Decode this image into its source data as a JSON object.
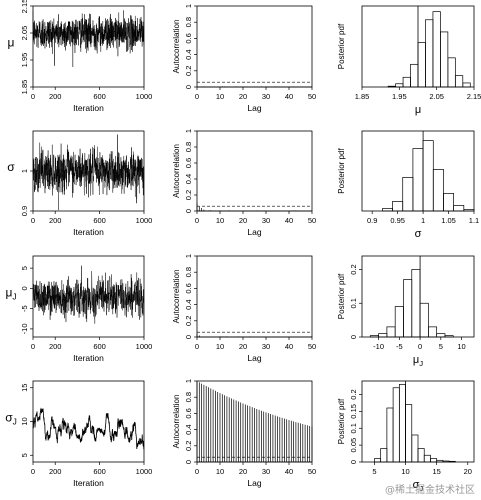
{
  "watermark": "@稀土掘金技术社区",
  "chart_data": [
    {
      "type": "line",
      "row": "mu",
      "trace": {
        "ylabel": "μ",
        "xlabel": "Iteration",
        "xlim": [
          0,
          1000
        ],
        "xticks": [
          0,
          200,
          600,
          1000
        ],
        "ylim": [
          1.85,
          2.15
        ],
        "yticks": [
          1.85,
          1.95,
          2.05,
          2.15
        ],
        "series": {
          "kind": "noise",
          "mean": 2.05,
          "sd": 0.03,
          "ar": 0.0,
          "n": 1000
        }
      },
      "acf": {
        "ylabel": "Autocorrelation",
        "xlabel": "Lag",
        "xlim": [
          0,
          50
        ],
        "xticks": [
          0,
          10,
          20,
          30,
          40,
          50
        ],
        "ylim": [
          0,
          1.0
        ],
        "yticks": [
          0.0,
          0.2,
          0.4,
          0.6,
          0.8,
          1.0
        ],
        "decay": 0.0,
        "start": 0.0,
        "ci": 0.06
      },
      "posterior": {
        "ylabel": "Posterior pdf",
        "xlabel": "μ",
        "xlim": [
          1.85,
          2.15
        ],
        "xticks": [
          1.85,
          1.95,
          2.05,
          2.15
        ],
        "ylim": [
          0,
          1
        ],
        "yticks": [],
        "ref_line": 2.0,
        "bins": [
          1.92,
          1.94,
          1.96,
          1.98,
          2.0,
          2.02,
          2.04,
          2.06,
          2.08,
          2.1,
          2.12,
          2.14
        ],
        "heights": [
          0.01,
          0.04,
          0.12,
          0.28,
          0.55,
          0.83,
          0.93,
          0.68,
          0.36,
          0.14,
          0.05
        ]
      }
    },
    {
      "type": "line",
      "row": "sigma",
      "trace": {
        "ylabel": "σ",
        "xlabel": "Iteration",
        "xlim": [
          0,
          1000
        ],
        "xticks": [
          0,
          200,
          600,
          1000
        ],
        "ylim": [
          0.9,
          1.1
        ],
        "yticks": [
          0.9,
          1.0
        ],
        "series": {
          "kind": "noise",
          "mean": 1.0,
          "sd": 0.025,
          "ar": 0.2,
          "n": 1000
        }
      },
      "acf": {
        "ylabel": "Autocorrelation",
        "xlabel": "Lag",
        "xlim": [
          0,
          50
        ],
        "xticks": [
          0,
          10,
          20,
          30,
          40,
          50
        ],
        "ylim": [
          0,
          1.0
        ],
        "yticks": [
          0.0,
          0.2,
          0.4,
          0.6,
          0.8,
          1.0
        ],
        "decay": 0.55,
        "start": 0.1,
        "ci": 0.06
      },
      "posterior": {
        "ylabel": "Posterior pdf",
        "xlabel": "σ",
        "xlim": [
          0.88,
          1.1
        ],
        "xticks": [
          0.9,
          0.95,
          1.0,
          1.05,
          1.1
        ],
        "ylim": [
          0,
          1
        ],
        "yticks": [],
        "ref_line": 1.0,
        "bins": [
          0.92,
          0.94,
          0.96,
          0.98,
          1.0,
          1.02,
          1.04,
          1.06,
          1.08,
          1.1
        ],
        "heights": [
          0.03,
          0.12,
          0.42,
          0.78,
          0.88,
          0.52,
          0.22,
          0.07,
          0.02
        ]
      }
    },
    {
      "type": "line",
      "row": "muJ",
      "trace": {
        "ylabel": "μJ",
        "xlabel": "Iteration",
        "xlim": [
          0,
          1000
        ],
        "xticks": [
          0,
          200,
          600,
          1000
        ],
        "ylim": [
          -12,
          8
        ],
        "yticks": [
          -10,
          -5,
          0,
          5
        ],
        "series": {
          "kind": "noise",
          "mean": -2.0,
          "sd": 2.2,
          "ar": 0.3,
          "n": 1000
        }
      },
      "acf": {
        "ylabel": "Autocorrelation",
        "xlabel": "Lag",
        "xlim": [
          0,
          50
        ],
        "xticks": [
          0,
          10,
          20,
          30,
          40,
          50
        ],
        "ylim": [
          0,
          1.0
        ],
        "yticks": [
          0.0,
          0.2,
          0.4,
          0.6,
          0.8,
          1.0
        ],
        "decay": 0.3,
        "start": 0.04,
        "ci": 0.06
      },
      "posterior": {
        "ylabel": "Posterior pdf",
        "xlabel": "μJ",
        "xlim": [
          -14,
          13
        ],
        "xticks": [
          -10,
          -5,
          0,
          5,
          10
        ],
        "ylim": [
          0,
          0.24
        ],
        "yticks": [
          0.0,
          0.1,
          0.2
        ],
        "ref_line": 0,
        "bins": [
          -12,
          -10,
          -8,
          -6,
          -4,
          -2,
          0,
          2,
          4,
          6,
          8,
          10
        ],
        "heights": [
          0.004,
          0.01,
          0.03,
          0.09,
          0.17,
          0.2,
          0.1,
          0.03,
          0.01,
          0.004,
          0.0
        ]
      }
    },
    {
      "type": "line",
      "row": "sigmaJ",
      "trace": {
        "ylabel": "σJ",
        "xlabel": "Iteration",
        "xlim": [
          0,
          1000
        ],
        "xticks": [
          0,
          200,
          600,
          1000
        ],
        "ylim": [
          4,
          16
        ],
        "yticks": [
          5,
          10,
          15
        ],
        "series": {
          "kind": "walk",
          "mean": 9.0,
          "sd": 1.6,
          "ar": 0.985,
          "n": 1000
        }
      },
      "acf": {
        "ylabel": "Autocorrelation",
        "xlabel": "Lag",
        "xlim": [
          0,
          50
        ],
        "xticks": [
          0,
          10,
          20,
          30,
          40,
          50
        ],
        "ylim": [
          0,
          1.0
        ],
        "yticks": [
          0.0,
          0.2,
          0.4,
          0.6,
          0.8,
          1.0
        ],
        "decay": 0.988,
        "start": 1.0,
        "ci": 0.06
      },
      "posterior": {
        "ylabel": "Posterior pdf",
        "xlabel": "σJ",
        "xlim": [
          3,
          21
        ],
        "xticks": [
          5,
          10,
          15,
          20
        ],
        "ylim": [
          0,
          0.24
        ],
        "yticks": [
          0.0,
          0.05,
          0.1,
          0.15,
          0.2
        ],
        "ref_line": 10,
        "bins": [
          5,
          6,
          7,
          8,
          9,
          10,
          11,
          12,
          13,
          14,
          15,
          16,
          17,
          18
        ],
        "heights": [
          0.01,
          0.04,
          0.16,
          0.22,
          0.23,
          0.17,
          0.08,
          0.04,
          0.02,
          0.01,
          0.005,
          0.003,
          0.002
        ]
      }
    }
  ]
}
